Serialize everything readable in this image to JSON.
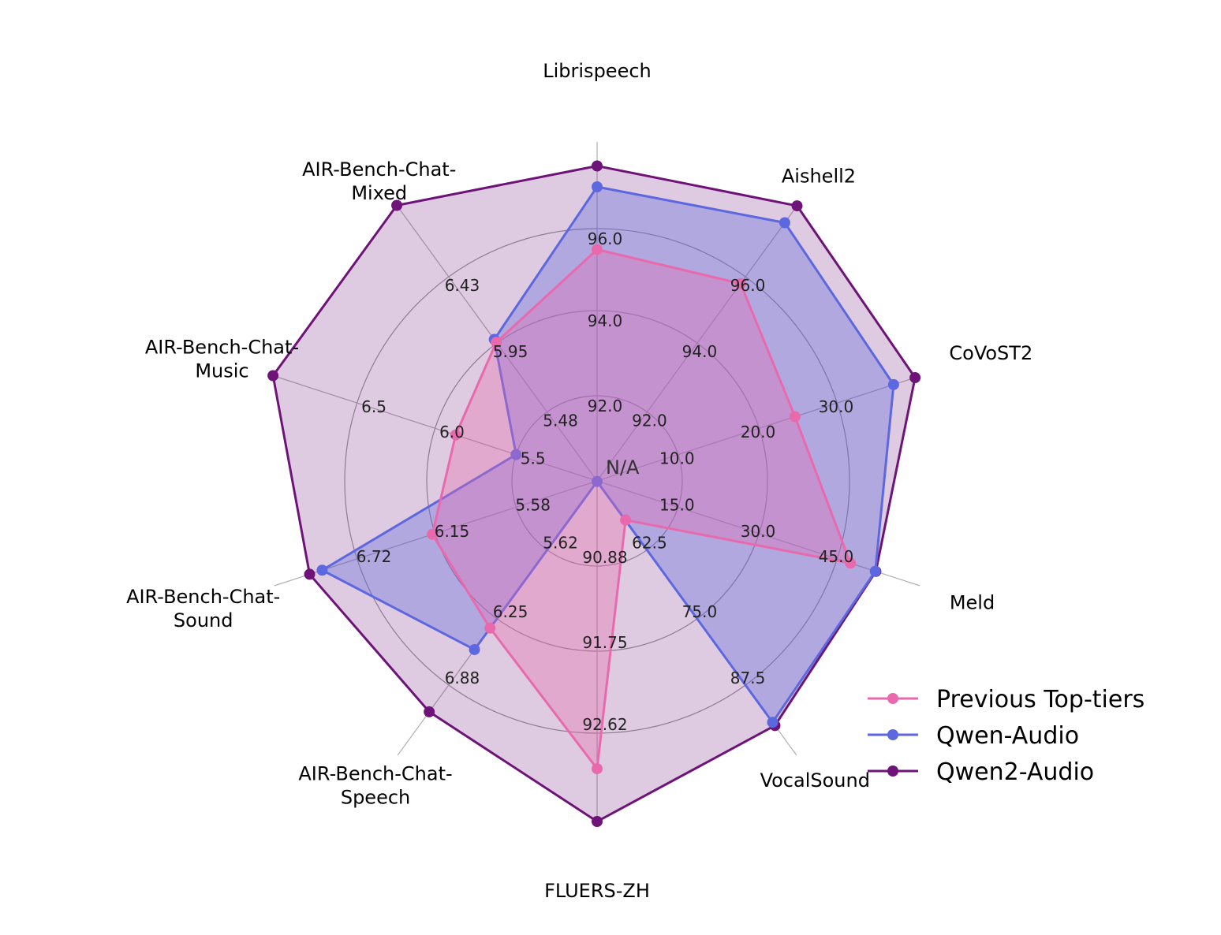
{
  "chart_data": {
    "type": "radar",
    "center_label": "N/A",
    "axes": [
      {
        "name": "Librispeech",
        "label_lines": [
          "Librispeech"
        ],
        "ticks": [
          "92.0",
          "94.0",
          "96.0"
        ]
      },
      {
        "name": "Aishell2",
        "label_lines": [
          "Aishell2"
        ],
        "ticks": [
          "92.0",
          "94.0",
          "96.0"
        ]
      },
      {
        "name": "CoVoST2",
        "label_lines": [
          "CoVoST2"
        ],
        "ticks": [
          "10.0",
          "20.0",
          "30.0"
        ]
      },
      {
        "name": "Meld",
        "label_lines": [
          "Meld"
        ],
        "ticks": [
          "15.0",
          "30.0",
          "45.0"
        ]
      },
      {
        "name": "VocalSound",
        "label_lines": [
          "VocalSound"
        ],
        "ticks": [
          "62.5",
          "75.0",
          "87.5"
        ]
      },
      {
        "name": "FLUERS-ZH",
        "label_lines": [
          "FLUERS-ZH"
        ],
        "ticks": [
          "90.88",
          "91.75",
          "92.62"
        ]
      },
      {
        "name": "AIR-Bench-Chat-Speech",
        "label_lines": [
          "AIR-Bench-Chat-",
          "Speech"
        ],
        "ticks": [
          "5.62",
          "6.25",
          "6.88"
        ]
      },
      {
        "name": "AIR-Bench-Chat-Sound",
        "label_lines": [
          "AIR-Bench-Chat-",
          "Sound"
        ],
        "ticks": [
          "5.58",
          "6.15",
          "6.72"
        ]
      },
      {
        "name": "AIR-Bench-Chat-Music",
        "label_lines": [
          "AIR-Bench-Chat-",
          "Music"
        ],
        "ticks": [
          "5.5",
          "6.0",
          "6.5"
        ]
      },
      {
        "name": "AIR-Bench-Chat-Mixed",
        "label_lines": [
          "AIR-Bench-Chat-",
          "Mixed"
        ],
        "ticks": [
          "5.48",
          "5.95",
          "6.43"
        ]
      }
    ],
    "series": [
      {
        "name": "Previous Top-tiers",
        "color": "#e86aad",
        "fill_opacity": 0.35,
        "values": [
          95.5,
          95.8,
          24.7,
          47.5,
          57.0,
          92.99,
          6.35,
          6.18,
          5.88,
          5.97
        ]
      },
      {
        "name": "Qwen-Audio",
        "color": "#5c67e0",
        "fill_opacity": 0.35,
        "values": [
          97.0,
          97.6,
          37.1,
          52.2,
          94.4,
          90.0,
          6.55,
          6.97,
          5.5,
          5.99
        ]
      },
      {
        "name": "Qwen2-Audio",
        "color": "#6e1378",
        "fill_opacity": 0.22,
        "values": [
          97.5,
          98.1,
          39.8,
          52.3,
          95.0,
          93.56,
          7.13,
          7.06,
          7.12,
          7.05
        ]
      }
    ],
    "grid": true,
    "legend_position": "bottom-right"
  }
}
